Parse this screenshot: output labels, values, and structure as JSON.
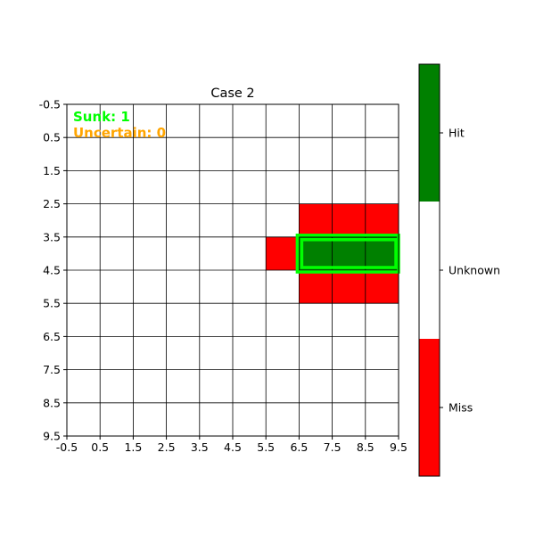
{
  "chart_data": {
    "type": "heatmap",
    "title": "Case 2",
    "xlabel": "",
    "ylabel": "",
    "grid_size": 10,
    "xlim": [
      -0.5,
      9.5
    ],
    "ylim": [
      9.5,
      -0.5
    ],
    "x_ticks": [
      "-0.5",
      "0.5",
      "1.5",
      "2.5",
      "3.5",
      "4.5",
      "5.5",
      "6.5",
      "7.5",
      "8.5",
      "9.5"
    ],
    "y_ticks": [
      "-0.5",
      "0.5",
      "1.5",
      "2.5",
      "3.5",
      "4.5",
      "5.5",
      "6.5",
      "7.5",
      "8.5",
      "9.5"
    ],
    "grid": true,
    "colors": {
      "miss": "#ff0000",
      "unknown": "#ffffff",
      "hit": "#008000",
      "sunk_outline": "#00ff00",
      "uncertain_text": "#ffa500",
      "sunk_text": "#00ff00"
    },
    "cells": [
      {
        "row": 3,
        "col": 7,
        "state": "miss"
      },
      {
        "row": 3,
        "col": 8,
        "state": "miss"
      },
      {
        "row": 3,
        "col": 9,
        "state": "miss"
      },
      {
        "row": 4,
        "col": 6,
        "state": "miss"
      },
      {
        "row": 4,
        "col": 7,
        "state": "hit"
      },
      {
        "row": 4,
        "col": 8,
        "state": "hit"
      },
      {
        "row": 4,
        "col": 9,
        "state": "hit"
      },
      {
        "row": 5,
        "col": 7,
        "state": "miss"
      },
      {
        "row": 5,
        "col": 8,
        "state": "miss"
      },
      {
        "row": 5,
        "col": 9,
        "state": "miss"
      }
    ],
    "sunk_ships": [
      {
        "row": 4,
        "col_start": 7,
        "col_end": 9
      }
    ],
    "annotations": {
      "sunk": "Sunk: 1",
      "uncertain": "Uncertain: 0"
    },
    "colorbar": {
      "labels": [
        "Hit",
        "Unknown",
        "Miss"
      ],
      "colors": [
        "#008000",
        "#ffffff",
        "#ff0000"
      ]
    }
  }
}
